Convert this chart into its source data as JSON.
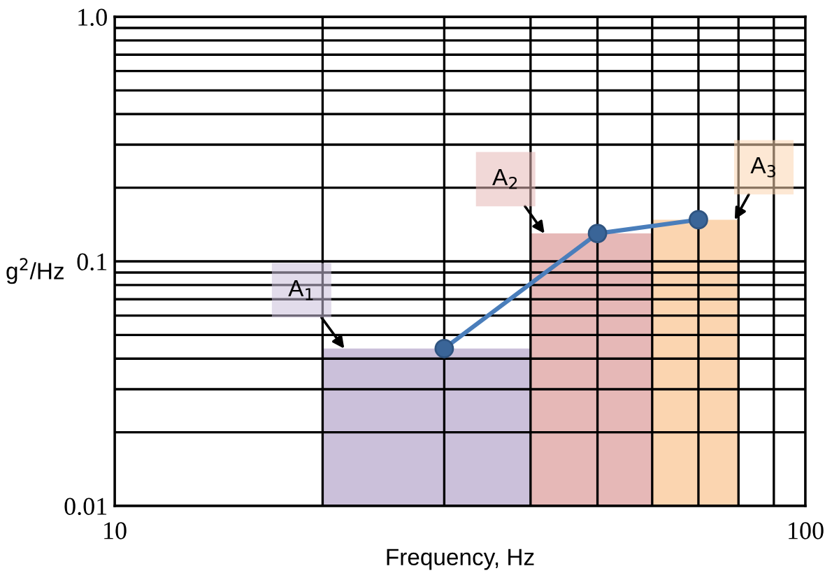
{
  "chart_data": {
    "type": "histogram",
    "xlabel": "Frequency, Hz",
    "ylabel": "g$^{2}$/Hz",
    "bins": [
      20,
      40,
      60,
      80
    ],
    "values": [
      0.044,
      0.13,
      0.148
    ],
    "colors": [
      "#cbc0da",
      "#e6b8b7",
      "#fbd5b0"
    ],
    "series": [
      {
        "type": "line",
        "x": [
          30,
          50,
          70
        ],
        "values": [
          0.044,
          0.13,
          0.148
        ],
        "color": "#4a7ebb",
        "marker": "circle",
        "line_style": "solid"
      }
    ],
    "annotations": [
      {
        "text": "A$_{1}$",
        "x": 21.5,
        "y": 0.044
      },
      {
        "text": "A$_{2}$",
        "x": 41.9,
        "y": 0.13
      },
      {
        "text": "A$_{3}$",
        "x": 79,
        "y": 0.148
      }
    ],
    "log": "xy",
    "xlim": [
      10,
      100
    ],
    "xticks": [
      10,
      100
    ],
    "ylim": [
      0.01,
      1
    ],
    "yticks": [
      0.01,
      0.1,
      {
        "value": 1,
        "label": "1.0"
      }
    ],
    "grid": true,
    "legend": false
  }
}
